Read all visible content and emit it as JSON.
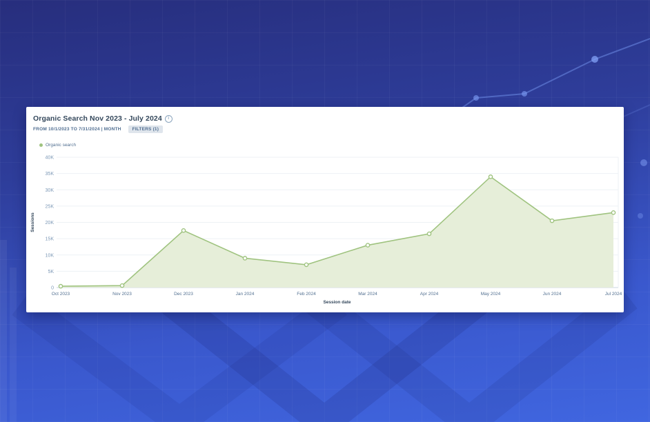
{
  "card": {
    "title": "Organic Search Nov 2023 - July 2024",
    "info_icon_glyph": "i",
    "range_badge": "FROM 10/1/2023 TO 7/31/2024 | MONTH",
    "filters_badge": "FILTERS (1)",
    "legend_label": "Organic search"
  },
  "chart_data": {
    "type": "area",
    "title": "Organic Search Nov 2023 - July 2024",
    "categories": [
      "Oct 2023",
      "Nov 2023",
      "Dec 2023",
      "Jan 2024",
      "Feb 2024",
      "Mar 2024",
      "Apr 2024",
      "May 2024",
      "Jun 2024",
      "Jul 2024"
    ],
    "series": [
      {
        "name": "Organic search",
        "values": [
          400,
          600,
          17500,
          9000,
          7000,
          13000,
          16500,
          34000,
          20500,
          23000
        ]
      }
    ],
    "xlabel": "Session date",
    "ylabel": "Sessions",
    "ylim": [
      0,
      40000
    ],
    "ytick_step": 5000,
    "ytick_labels": [
      "0",
      "5K",
      "10K",
      "15K",
      "20K",
      "25K",
      "30K",
      "35K",
      "40K"
    ],
    "grid": true,
    "legend_position": "top-left",
    "line_color": "#9fc37f",
    "fill_color": "#e6eed9",
    "marker": "circle"
  }
}
